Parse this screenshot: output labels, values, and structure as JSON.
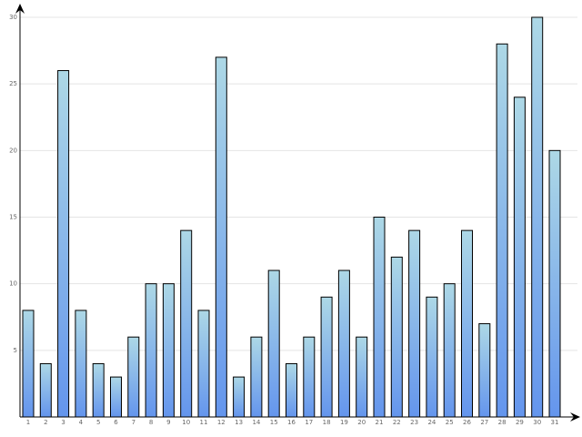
{
  "chart_data": {
    "type": "bar",
    "categories": [
      "1",
      "2",
      "3",
      "4",
      "5",
      "6",
      "7",
      "8",
      "9",
      "10",
      "11",
      "12",
      "13",
      "14",
      "15",
      "16",
      "17",
      "18",
      "19",
      "20",
      "21",
      "22",
      "23",
      "24",
      "25",
      "26",
      "27",
      "28",
      "29",
      "30",
      "31"
    ],
    "values": [
      8,
      4,
      26,
      8,
      4,
      3,
      6,
      10,
      10,
      14,
      8,
      27,
      3,
      6,
      11,
      4,
      6,
      9,
      11,
      6,
      15,
      12,
      14,
      9,
      10,
      14,
      7,
      28,
      24,
      30,
      20
    ],
    "color_top": "#add8e6",
    "color_bottom": "#6495ed",
    "ylim": [
      0,
      30
    ],
    "yticks": [
      5,
      10,
      15,
      20,
      25,
      30
    ],
    "grid": true
  }
}
